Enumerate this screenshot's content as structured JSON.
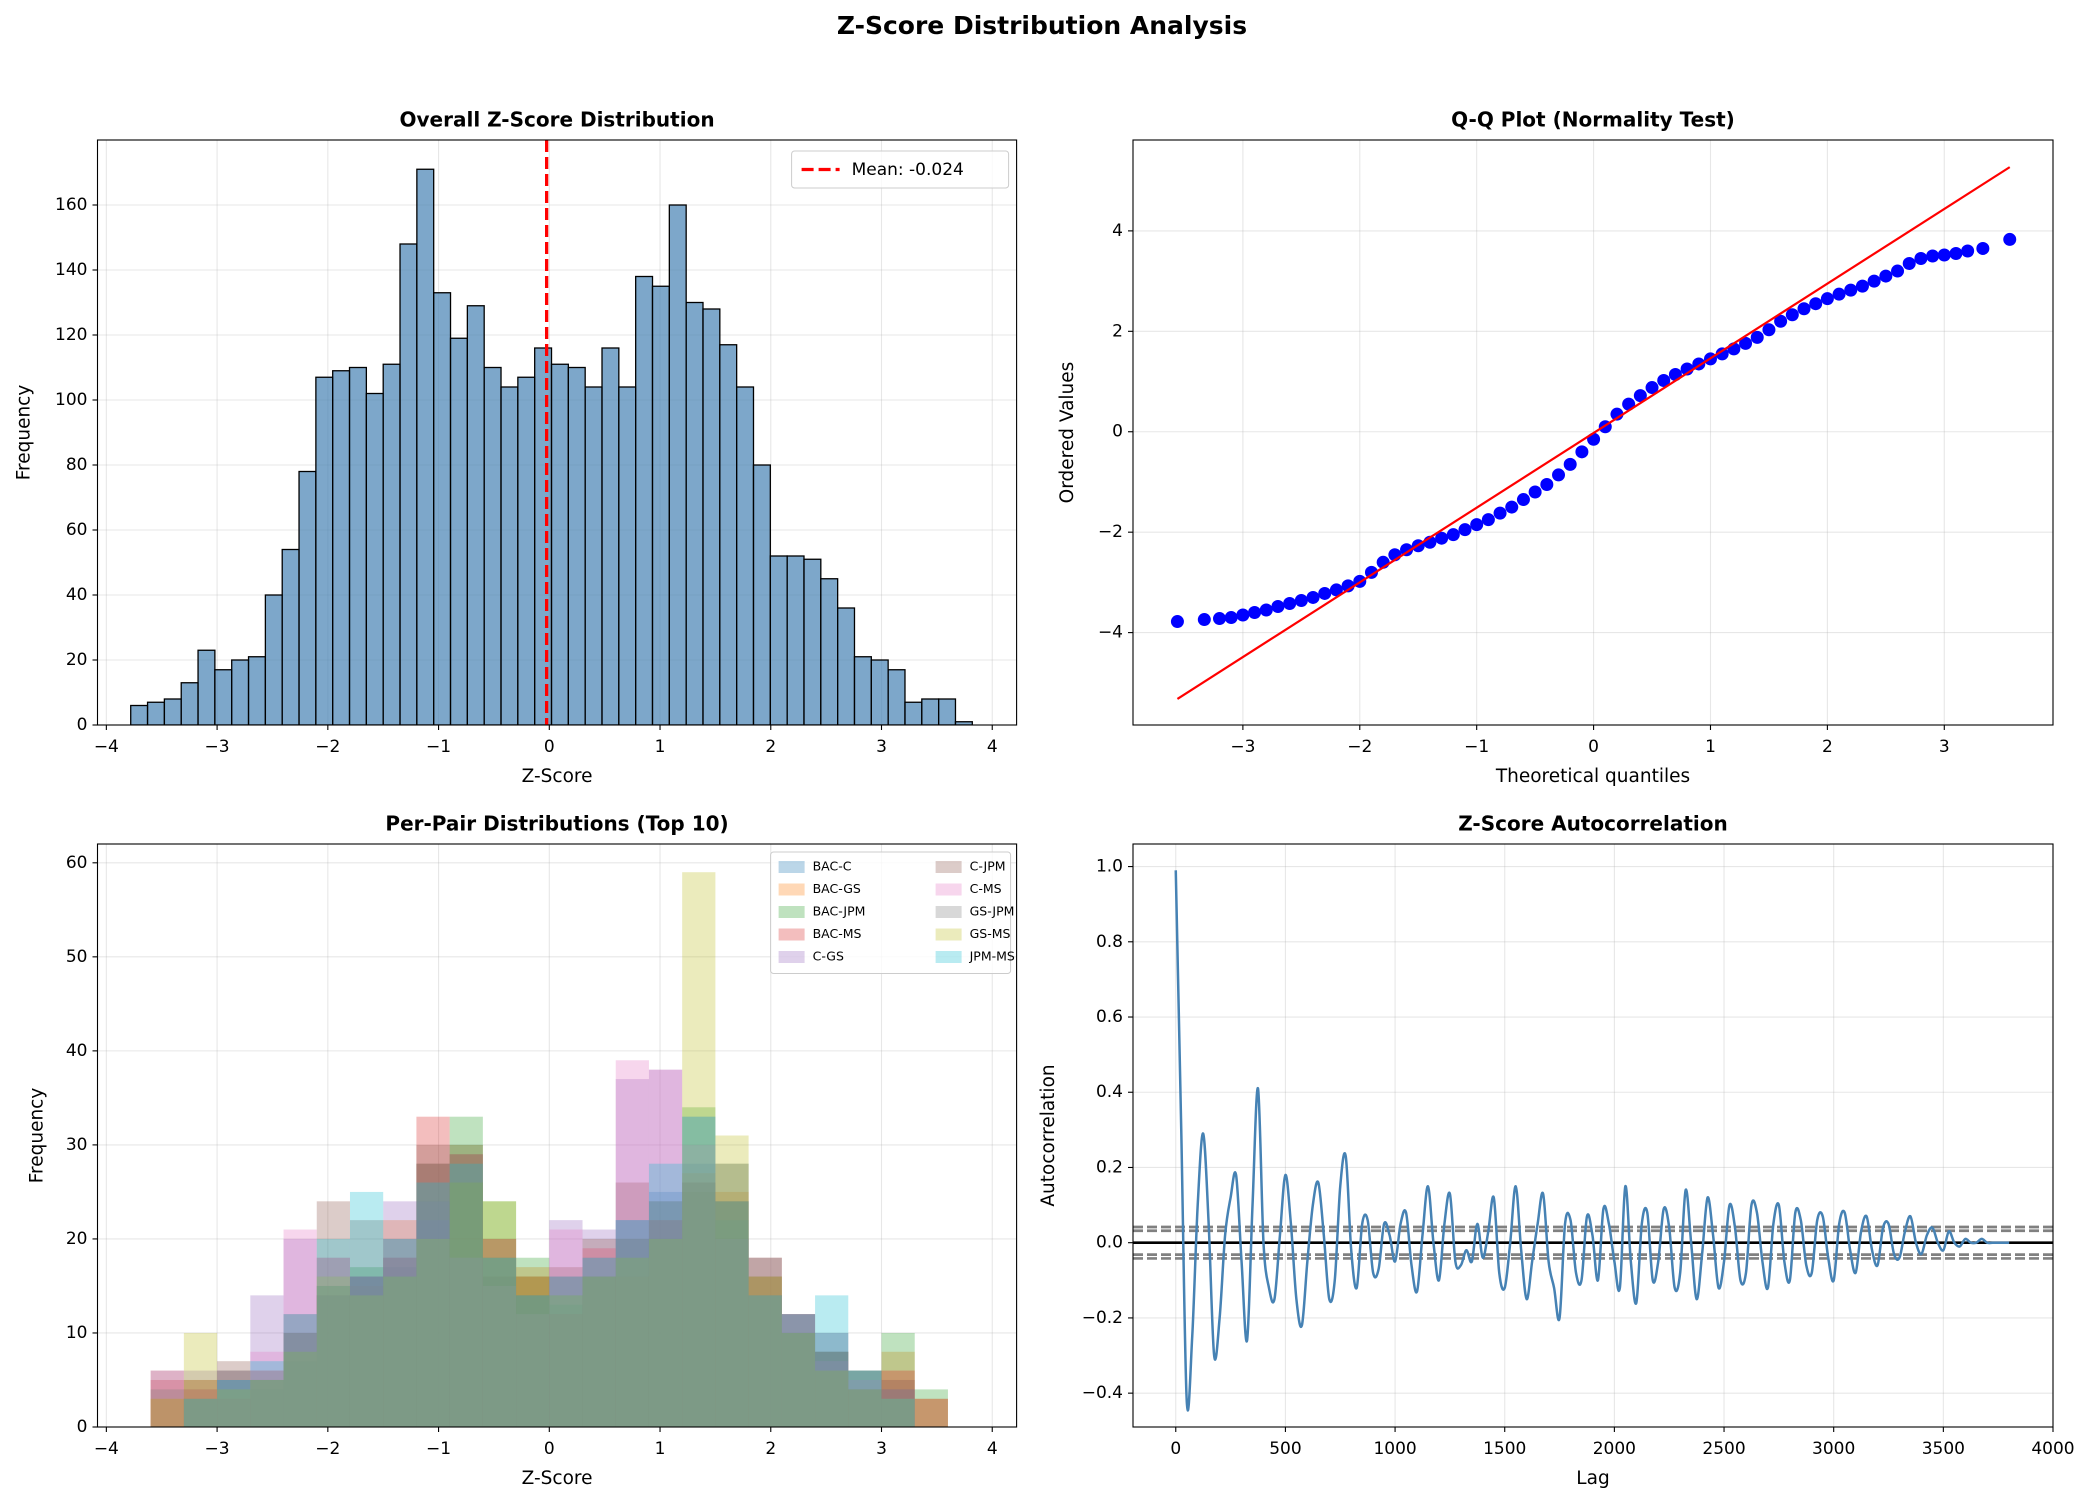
{
  "title": "Z-Score Distribution Analysis",
  "chart_data": [
    {
      "type": "histogram",
      "title": "Overall Z-Score Distribution",
      "xlabel": "Z-Score",
      "ylabel": "Frequency",
      "grid": true,
      "color": "#4682b4",
      "edgecolor": "#000000",
      "bins": [
        -3.78,
        -3.628,
        -3.476,
        -3.324,
        -3.172,
        -3.02,
        -2.868,
        -2.716,
        -2.564,
        -2.412,
        -2.26,
        -2.108,
        -1.956,
        -1.804,
        -1.652,
        -1.5,
        -1.348,
        -1.196,
        -1.044,
        -0.892,
        -0.74,
        -0.588,
        -0.436,
        -0.284,
        -0.132,
        0.02,
        0.172,
        0.324,
        0.476,
        0.628,
        0.78,
        0.932,
        1.084,
        1.236,
        1.388,
        1.54,
        1.692,
        1.844,
        1.996,
        2.148,
        2.3,
        2.452,
        2.604,
        2.756,
        2.908,
        3.06,
        3.212,
        3.364,
        3.516,
        3.668,
        3.82
      ],
      "values": [
        6,
        7,
        8,
        13,
        23,
        17,
        20,
        21,
        40,
        54,
        78,
        107,
        109,
        110,
        102,
        111,
        148,
        171,
        133,
        119,
        129,
        110,
        104,
        107,
        116,
        111,
        110,
        104,
        116,
        104,
        138,
        135,
        160,
        130,
        128,
        117,
        104,
        80,
        52,
        52,
        51,
        45,
        36,
        21,
        20,
        17,
        7,
        8,
        8,
        1
      ],
      "vline": {
        "value": -0.024,
        "label": "Mean: -0.024",
        "color": "#ff0000"
      },
      "legend": "upper right",
      "xlim": [
        -4.08,
        4.22
      ],
      "xticks": [
        {
          "value": -4,
          "label": "−4"
        },
        {
          "value": -3,
          "label": "−3"
        },
        {
          "value": -2,
          "label": "−2"
        },
        {
          "value": -1,
          "label": "−1"
        },
        0,
        1,
        2,
        3,
        4
      ],
      "ylim": [
        0,
        180
      ],
      "yticks": [
        0,
        20,
        40,
        60,
        80,
        100,
        120,
        140,
        160
      ]
    },
    {
      "type": "scatter",
      "title": "Q-Q Plot (Normality Test)",
      "xlabel": "Theoretical quantiles",
      "ylabel": "Ordered Values",
      "grid": true,
      "series": [
        {
          "color": "#0000ff",
          "x": [
            -3.56,
            -3.33,
            -3.2,
            -3.1,
            -3.0,
            -2.9,
            -2.8,
            -2.7,
            -2.6,
            -2.5,
            -2.4,
            -2.3,
            -2.2,
            -2.1,
            -2.0,
            -1.9,
            -1.8,
            -1.7,
            -1.6,
            -1.5,
            -1.4,
            -1.3,
            -1.2,
            -1.1,
            -1.0,
            -0.9,
            -0.8,
            -0.7,
            -0.6,
            -0.5,
            -0.4,
            -0.3,
            -0.2,
            -0.1,
            0,
            0.1,
            0.2,
            0.3,
            0.4,
            0.5,
            0.6,
            0.7,
            0.8,
            0.9,
            1.0,
            1.1,
            1.2,
            1.3,
            1.4,
            1.5,
            1.6,
            1.7,
            1.8,
            1.9,
            2.0,
            2.1,
            2.2,
            2.3,
            2.4,
            2.5,
            2.6,
            2.7,
            2.8,
            2.9,
            3.0,
            3.1,
            3.2,
            3.33,
            3.56
          ],
          "values": [
            -3.78,
            -3.74,
            -3.72,
            -3.7,
            -3.65,
            -3.6,
            -3.55,
            -3.48,
            -3.42,
            -3.36,
            -3.3,
            -3.22,
            -3.15,
            -3.07,
            -2.98,
            -2.8,
            -2.6,
            -2.45,
            -2.35,
            -2.27,
            -2.2,
            -2.12,
            -2.05,
            -1.95,
            -1.85,
            -1.75,
            -1.62,
            -1.5,
            -1.35,
            -1.2,
            -1.05,
            -0.86,
            -0.65,
            -0.4,
            -0.15,
            0.1,
            0.35,
            0.55,
            0.72,
            0.88,
            1.02,
            1.14,
            1.25,
            1.35,
            1.45,
            1.55,
            1.65,
            1.76,
            1.88,
            2.03,
            2.2,
            2.33,
            2.45,
            2.55,
            2.65,
            2.74,
            2.82,
            2.9,
            3.0,
            3.1,
            3.2,
            3.35,
            3.45,
            3.5,
            3.52,
            3.55,
            3.6,
            3.65,
            3.83
          ]
        },
        {
          "color": "#ff0000",
          "style": "line",
          "x": [
            -3.56,
            3.56
          ],
          "values": [
            -5.32,
            5.27
          ]
        }
      ],
      "xlim": [
        -3.94,
        3.93
      ],
      "xticks": [
        {
          "value": -3,
          "label": "−3"
        },
        {
          "value": -2,
          "label": "−2"
        },
        {
          "value": -1,
          "label": "−1"
        },
        0,
        1,
        2,
        3
      ],
      "ylim": [
        -5.84,
        5.81
      ],
      "yticks": [
        {
          "value": -4,
          "label": "−4"
        },
        {
          "value": -2,
          "label": "−2"
        },
        0,
        2,
        4
      ]
    },
    {
      "type": "histogram",
      "title": "Per-Pair Distributions (Top 10)",
      "xlabel": "Z-Score",
      "ylabel": "Frequency",
      "grid": true,
      "legend": "upper right",
      "opacity": 0.3,
      "bins": [
        -3.6,
        -3.3,
        -3.0,
        -2.7,
        -2.4,
        -2.1,
        -1.8,
        -1.5,
        -1.2,
        -0.9,
        -0.6,
        -0.3,
        0,
        0.3,
        0.6,
        0.9,
        1.2,
        1.5,
        1.8,
        2.1,
        2.4,
        2.7,
        3.0,
        3.3,
        3.6
      ],
      "series": [
        {
          "name": "BAC-C",
          "color": "#1f77b4",
          "values": [
            0,
            3,
            5,
            4,
            7,
            14,
            16,
            17,
            28,
            30,
            18,
            16,
            16,
            18,
            22,
            25,
            28,
            20,
            14,
            10,
            8,
            4,
            3,
            0
          ]
        },
        {
          "name": "BAC-GS",
          "color": "#ff7f0e",
          "values": [
            3,
            5,
            4,
            6,
            10,
            14,
            15,
            22,
            28,
            30,
            20,
            17,
            16,
            19,
            16,
            22,
            27,
            25,
            18,
            12,
            8,
            6,
            8,
            3
          ]
        },
        {
          "name": "BAC-JPM",
          "color": "#2ca02c",
          "values": [
            0,
            4,
            6,
            5,
            8,
            15,
            17,
            20,
            24,
            33,
            24,
            18,
            14,
            16,
            18,
            20,
            34,
            28,
            16,
            10,
            8,
            6,
            10,
            4
          ]
        },
        {
          "name": "BAC-MS",
          "color": "#d62728",
          "values": [
            5,
            4,
            3,
            6,
            10,
            18,
            16,
            18,
            33,
            29,
            20,
            16,
            12,
            16,
            20,
            22,
            26,
            24,
            16,
            12,
            8,
            4,
            6,
            3
          ]
        },
        {
          "name": "C-GS",
          "color": "#9467bd",
          "values": [
            0,
            6,
            5,
            14,
            20,
            14,
            16,
            24,
            22,
            18,
            20,
            14,
            22,
            21,
            37,
            38,
            33,
            28,
            18,
            12,
            10,
            6,
            4,
            0
          ]
        },
        {
          "name": "C-JPM",
          "color": "#8c564b",
          "values": [
            6,
            5,
            7,
            5,
            12,
            24,
            22,
            18,
            30,
            26,
            16,
            14,
            17,
            20,
            26,
            24,
            25,
            24,
            14,
            10,
            6,
            4,
            5,
            0
          ]
        },
        {
          "name": "C-MS",
          "color": "#e377c2",
          "values": [
            6,
            4,
            6,
            8,
            21,
            18,
            16,
            20,
            24,
            18,
            15,
            12,
            21,
            19,
            39,
            38,
            30,
            20,
            14,
            12,
            7,
            5,
            3,
            0
          ]
        },
        {
          "name": "GS-JPM",
          "color": "#7f7f7f",
          "values": [
            4,
            3,
            6,
            5,
            10,
            15,
            16,
            16,
            28,
            29,
            18,
            14,
            13,
            16,
            20,
            24,
            26,
            22,
            18,
            12,
            10,
            6,
            4,
            0
          ]
        },
        {
          "name": "GS-MS",
          "color": "#bcbd22",
          "values": [
            3,
            10,
            4,
            5,
            8,
            16,
            14,
            16,
            20,
            26,
            24,
            16,
            14,
            16,
            18,
            20,
            59,
            31,
            16,
            10,
            6,
            4,
            3,
            0
          ]
        },
        {
          "name": "JPM-MS",
          "color": "#17becf",
          "values": [
            0,
            3,
            5,
            7,
            12,
            20,
            25,
            20,
            26,
            28,
            18,
            14,
            16,
            18,
            22,
            28,
            33,
            24,
            14,
            12,
            14,
            6,
            3,
            0
          ]
        }
      ],
      "xlim": [
        -4.08,
        4.22
      ],
      "xticks": [
        {
          "value": -4,
          "label": "−4"
        },
        {
          "value": -3,
          "label": "−3"
        },
        {
          "value": -2,
          "label": "−2"
        },
        {
          "value": -1,
          "label": "−1"
        },
        0,
        1,
        2,
        3,
        4
      ],
      "ylim": [
        0,
        62
      ],
      "yticks": [
        0,
        10,
        20,
        30,
        40,
        50,
        60
      ]
    },
    {
      "type": "line",
      "title": "Z-Score Autocorrelation",
      "xlabel": "Lag",
      "ylabel": "Autocorrelation",
      "grid": true,
      "x": [
        0,
        25,
        50,
        75,
        100,
        125,
        150,
        175,
        200,
        225,
        250,
        275,
        300,
        325,
        350,
        375,
        400,
        425,
        450,
        475,
        500,
        525,
        550,
        575,
        600,
        625,
        650,
        675,
        700,
        725,
        750,
        775,
        800,
        825,
        850,
        875,
        900,
        925,
        950,
        975,
        1000,
        1025,
        1050,
        1075,
        1100,
        1125,
        1150,
        1175,
        1200,
        1225,
        1250,
        1275,
        1300,
        1325,
        1350,
        1375,
        1400,
        1425,
        1450,
        1475,
        1500,
        1525,
        1550,
        1575,
        1600,
        1625,
        1650,
        1675,
        1700,
        1725,
        1750,
        1775,
        1800,
        1825,
        1850,
        1875,
        1900,
        1925,
        1950,
        1975,
        2000,
        2025,
        2050,
        2075,
        2100,
        2125,
        2150,
        2175,
        2200,
        2225,
        2250,
        2275,
        2300,
        2325,
        2350,
        2375,
        2400,
        2425,
        2450,
        2475,
        2500,
        2525,
        2550,
        2575,
        2600,
        2625,
        2650,
        2675,
        2700,
        2725,
        2750,
        2775,
        2800,
        2825,
        2850,
        2875,
        2900,
        2925,
        2950,
        2975,
        3000,
        3025,
        3050,
        3075,
        3100,
        3125,
        3150,
        3175,
        3200,
        3225,
        3250,
        3275,
        3300,
        3325,
        3350,
        3375,
        3400,
        3425,
        3450,
        3475,
        3500,
        3525,
        3550,
        3575,
        3600,
        3625,
        3650,
        3675,
        3700,
        3725,
        3750,
        3775,
        3800
      ],
      "series": [
        {
          "color": "#4682b4",
          "values": [
            0.99,
            0.3,
            -0.42,
            -0.25,
            0.1,
            0.29,
            0.05,
            -0.3,
            -0.2,
            0.02,
            0.12,
            0.18,
            -0.05,
            -0.26,
            0.1,
            0.41,
            0.0,
            -0.12,
            -0.15,
            0.02,
            0.18,
            0.05,
            -0.15,
            -0.22,
            -0.05,
            0.1,
            0.16,
            0.02,
            -0.15,
            -0.1,
            0.15,
            0.23,
            -0.02,
            -0.12,
            0.05,
            0.06,
            -0.08,
            -0.07,
            0.05,
            0.02,
            -0.05,
            0.05,
            0.08,
            -0.06,
            -0.13,
            0.02,
            0.15,
            0.0,
            -0.1,
            0.05,
            0.13,
            -0.05,
            -0.06,
            -0.02,
            -0.05,
            0.05,
            -0.04,
            0.03,
            0.12,
            -0.08,
            -0.12,
            0.0,
            0.15,
            -0.02,
            -0.15,
            -0.05,
            0.05,
            0.13,
            -0.05,
            -0.12,
            -0.2,
            0.05,
            0.06,
            -0.08,
            -0.1,
            0.07,
            0.02,
            -0.1,
            0.09,
            0.05,
            -0.05,
            -0.12,
            0.15,
            -0.05,
            -0.16,
            0.05,
            0.08,
            -0.1,
            -0.05,
            0.09,
            0.04,
            -0.12,
            -0.08,
            0.14,
            0.0,
            -0.15,
            -0.03,
            0.12,
            0.02,
            -0.12,
            -0.05,
            0.1,
            0.04,
            -0.1,
            -0.08,
            0.1,
            0.08,
            -0.05,
            -0.12,
            0.05,
            0.1,
            -0.05,
            -0.1,
            0.08,
            0.06,
            -0.06,
            -0.08,
            0.06,
            0.07,
            -0.04,
            -0.1,
            0.05,
            0.08,
            -0.02,
            -0.08,
            0.03,
            0.07,
            -0.02,
            -0.06,
            0.04,
            0.05,
            -0.03,
            -0.04,
            0.03,
            0.07,
            0.0,
            -0.03,
            0.02,
            0.04,
            0.0,
            -0.02,
            0.03,
            0.0,
            -0.01,
            0.01,
            0.0,
            0.0,
            0.01,
            0.0,
            0.0,
            0.0,
            0.0,
            0.0
          ]
        }
      ],
      "hlines": [
        {
          "value": 0.0418,
          "color": "#808080",
          "dashed": true
        },
        {
          "value": 0.0318,
          "color": "#808080",
          "dashed": true
        },
        {
          "value": 0,
          "color": "#000000",
          "dashed": false
        },
        {
          "value": -0.0318,
          "color": "#808080",
          "dashed": true
        },
        {
          "value": -0.0418,
          "color": "#808080",
          "dashed": true
        }
      ],
      "xlim": [
        -195,
        4000
      ],
      "xticks": [
        0,
        500,
        1000,
        1500,
        2000,
        2500,
        3000,
        3500,
        4000
      ],
      "ylim": [
        -0.49,
        1.06
      ],
      "yticks": [
        {
          "value": -0.4,
          "label": "−0.4"
        },
        {
          "value": -0.2,
          "label": "−0.2"
        },
        {
          "value": 0,
          "label": "0.0"
        },
        0.2,
        0.4,
        0.6,
        0.8,
        {
          "value": 1,
          "label": "1.0"
        }
      ]
    }
  ]
}
